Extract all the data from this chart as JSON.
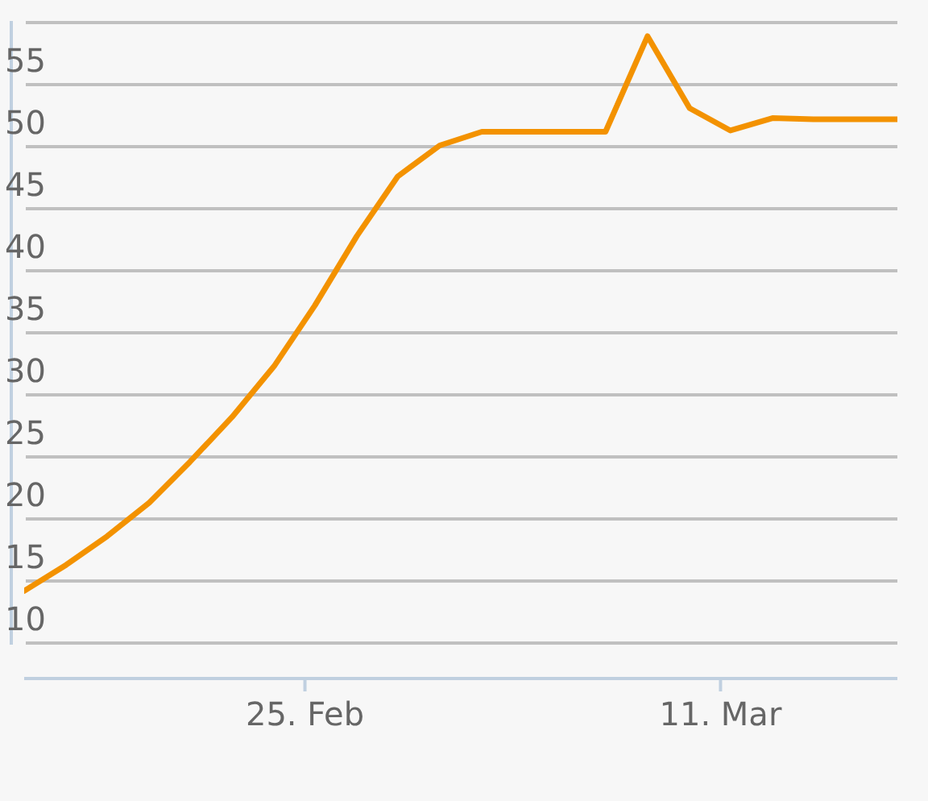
{
  "chart_data": {
    "type": "line",
    "x": [
      "--02-15T13:00",
      "--02-16T23:00",
      "--02-18T08:00",
      "--02-19T18:00",
      "--02-21T03:00",
      "--02-22T13:00",
      "--02-23T23:00",
      "--02-25T08:00",
      "--02-26T18:00",
      "--02-28T03:00",
      "--03-01T13:00",
      "--03-02T23:00",
      "--03-04T08:00",
      "--03-05T18:00",
      "--03-07T03:00",
      "--03-08T13:00",
      "--03-09T23:00",
      "--03-11T08:00",
      "--03-12T18:00",
      "--03-14T03:00",
      "--03-15T13:00",
      "--03-16T23:00"
    ],
    "series": [
      {
        "color": "#f39200",
        "values": [
          14.2,
          16.3,
          18.6,
          21.3,
          24.6,
          28.2,
          32.3,
          37.2,
          42.8,
          47.6,
          50.1,
          51.2,
          51.2,
          51.2,
          51.2,
          58.9,
          53.1,
          51.3,
          52.3,
          52.2,
          52.2,
          52.2
        ]
      }
    ],
    "xlim": [
      "--02-15T13:00",
      "--03-16T23:00"
    ],
    "xticks": [
      {
        "value": "--02-25",
        "label": "25. Feb"
      },
      {
        "value": "--03-11",
        "label": "11. Mar"
      }
    ],
    "ylim": [
      10,
      60
    ],
    "yticks": [
      10,
      15,
      20,
      25,
      30,
      35,
      40,
      45,
      50,
      55,
      {
        "value": 60,
        "label": null
      }
    ],
    "grid": "y",
    "marker": "none",
    "line_style": "solid"
  }
}
